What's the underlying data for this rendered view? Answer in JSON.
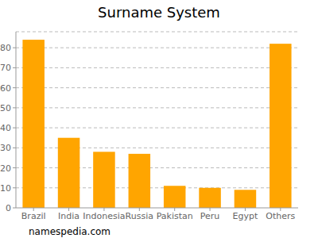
{
  "chart_data": {
    "type": "bar",
    "title": "Surname System",
    "categories": [
      "Brazil",
      "India",
      "Indonesia",
      "Russia",
      "Pakistan",
      "Peru",
      "Egypt",
      "Others"
    ],
    "values": [
      84,
      35,
      28,
      27,
      11,
      10,
      9,
      82
    ],
    "color": "#ffa500",
    "ylim": [
      0,
      88
    ],
    "yticks": [
      0,
      10,
      20,
      30,
      40,
      50,
      60,
      70,
      80
    ],
    "grid": true,
    "annotations": [
      "namespedia.com"
    ]
  }
}
